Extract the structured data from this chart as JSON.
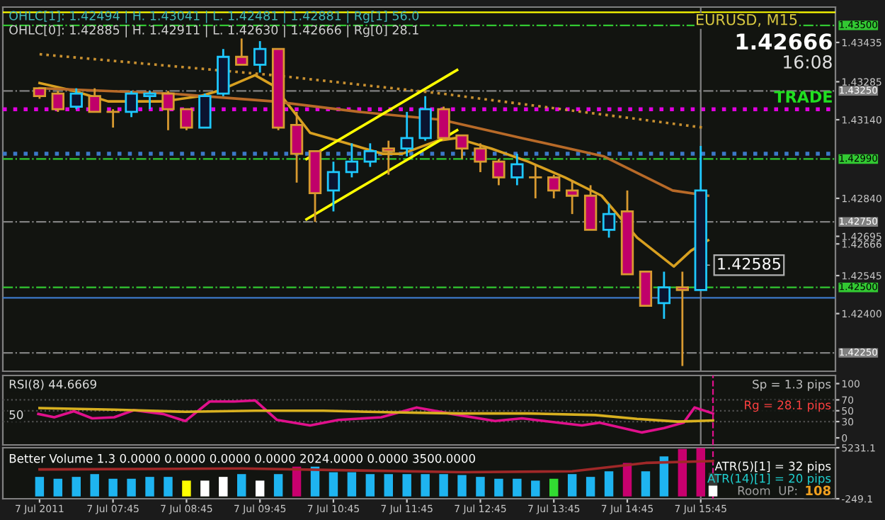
{
  "chart_data": [
    {
      "type": "candlestick",
      "title": "EURUSD, M15",
      "x": [
        "2011-07-07T06:45",
        "2011-07-07T07:00",
        "2011-07-07T07:15",
        "2011-07-07T07:30",
        "2011-07-07T07:45",
        "2011-07-07T08:00",
        "2011-07-07T08:15",
        "2011-07-07T08:30",
        "2011-07-07T08:45",
        "2011-07-07T09:00",
        "2011-07-07T09:15",
        "2011-07-07T09:30",
        "2011-07-07T09:45",
        "2011-07-07T10:00",
        "2011-07-07T10:15",
        "2011-07-07T10:30",
        "2011-07-07T10:45",
        "2011-07-07T11:00",
        "2011-07-07T11:15",
        "2011-07-07T11:30",
        "2011-07-07T11:45",
        "2011-07-07T12:00",
        "2011-07-07T12:15",
        "2011-07-07T12:30",
        "2011-07-07T12:45",
        "2011-07-07T13:00",
        "2011-07-07T13:15",
        "2011-07-07T13:30",
        "2011-07-07T13:45",
        "2011-07-07T14:00",
        "2011-07-07T14:15",
        "2011-07-07T14:30",
        "2011-07-07T14:45",
        "2011-07-07T15:00",
        "2011-07-07T15:15",
        "2011-07-07T15:30",
        "2011-07-07T15:45"
      ],
      "ohlc": [
        [
          1.4326,
          1.4326,
          1.4322,
          1.4323
        ],
        [
          1.4324,
          1.4325,
          1.4317,
          1.4318
        ],
        [
          1.4319,
          1.4326,
          1.4318,
          1.4324
        ],
        [
          1.4323,
          1.4326,
          1.4317,
          1.4317
        ],
        [
          1.4317,
          1.4318,
          1.4311,
          1.4317
        ],
        [
          1.4317,
          1.4325,
          1.4315,
          1.4324
        ],
        [
          1.4323,
          1.4325,
          1.4318,
          1.4324
        ],
        [
          1.4324,
          1.4325,
          1.431,
          1.4318
        ],
        [
          1.4318,
          1.4318,
          1.431,
          1.4311
        ],
        [
          1.4311,
          1.4324,
          1.4311,
          1.4323
        ],
        [
          1.4324,
          1.4341,
          1.4323,
          1.4338
        ],
        [
          1.4338,
          1.4345,
          1.4335,
          1.4335
        ],
        [
          1.4335,
          1.4344,
          1.4332,
          1.4341
        ],
        [
          1.4341,
          1.4341,
          1.431,
          1.4311
        ],
        [
          1.4312,
          1.4317,
          1.429,
          1.4301
        ],
        [
          1.4302,
          1.4302,
          1.4275,
          1.4286
        ],
        [
          1.4287,
          1.4298,
          1.4279,
          1.4294
        ],
        [
          1.4294,
          1.4305,
          1.4292,
          1.4298
        ],
        [
          1.4298,
          1.4305,
          1.4296,
          1.4302
        ],
        [
          1.4303,
          1.4306,
          1.4293,
          1.4302
        ],
        [
          1.4303,
          1.4317,
          1.43,
          1.4307
        ],
        [
          1.4307,
          1.4323,
          1.4306,
          1.4318
        ],
        [
          1.4318,
          1.4319,
          1.4306,
          1.4307
        ],
        [
          1.4308,
          1.4308,
          1.4299,
          1.4303
        ],
        [
          1.4303,
          1.4305,
          1.4294,
          1.4298
        ],
        [
          1.4298,
          1.4299,
          1.4289,
          1.4292
        ],
        [
          1.4292,
          1.4301,
          1.4289,
          1.4297
        ],
        [
          1.4292,
          1.4297,
          1.4284,
          1.4292
        ],
        [
          1.4292,
          1.4293,
          1.4284,
          1.4287
        ],
        [
          1.4287,
          1.4291,
          1.4278,
          1.4285
        ],
        [
          1.4285,
          1.4289,
          1.4272,
          1.4272
        ],
        [
          1.4272,
          1.4282,
          1.4269,
          1.4278
        ],
        [
          1.4279,
          1.4287,
          1.4255,
          1.4255
        ],
        [
          1.4256,
          1.4256,
          1.4243,
          1.4243
        ],
        [
          1.4244,
          1.4256,
          1.4238,
          1.425
        ],
        [
          1.425,
          1.4256,
          1.422,
          1.4249
        ],
        [
          1.4249,
          1.4304,
          1.4249,
          1.4287
        ]
      ],
      "series": [
        {
          "type": "line",
          "color": "#d8a020",
          "x": [
            "2011-07-07T06:45",
            "2011-07-07T07:13",
            "2011-07-07T07:41",
            "2011-07-07T08:26",
            "2011-07-07T08:56",
            "2011-07-07T09:11",
            "2011-07-07T09:41",
            "2011-07-07T09:56",
            "2011-07-07T10:11",
            "2011-07-07T10:26",
            "2011-07-07T10:56",
            "2011-07-07T11:25",
            "2011-07-07T11:41",
            "2011-07-07T12:10",
            "2011-07-07T12:25",
            "2011-07-07T12:54",
            "2011-07-07T13:24",
            "2011-07-07T13:54",
            "2011-07-07T14:24",
            "2011-07-07T14:53",
            "2011-07-07T15:23",
            "2011-07-07T15:37",
            "2011-07-07T15:51"
          ],
          "values": [
            1.4328,
            1.4325,
            1.4321,
            1.4321,
            1.4323,
            1.4325,
            1.4331,
            1.4327,
            1.4318,
            1.4309,
            1.4305,
            1.4301,
            1.4301,
            1.4306,
            1.4307,
            1.4303,
            1.4298,
            1.4292,
            1.4285,
            1.4269,
            1.4258,
            1.4264,
            1.4268
          ]
        },
        {
          "type": "line",
          "color": "#b86a28",
          "x": [
            "2011-07-07T06:45",
            "2011-07-07T08:31",
            "2011-07-07T09:56",
            "2011-07-07T11:06",
            "2011-07-07T12:13",
            "2011-07-07T13:19",
            "2011-07-07T14:26",
            "2011-07-07T15:22",
            "2011-07-07T15:51"
          ],
          "values": [
            1.4326,
            1.4324,
            1.4321,
            1.4317,
            1.4314,
            1.4307,
            1.43,
            1.4287,
            1.4285
          ]
        },
        {
          "type": "line",
          "color": "#c89030",
          "line_style": "dotted",
          "x": [
            "2011-07-07T06:45",
            "2011-07-07T09:56",
            "2011-07-07T12:13",
            "2011-07-07T15:47"
          ],
          "values": [
            1.4339,
            1.4331,
            1.4324,
            1.4311
          ]
        },
        {
          "type": "line",
          "color": "#ffff00",
          "x": [
            "2011-07-07T10:23",
            "2011-07-07T12:26"
          ],
          "values": [
            1.4299,
            1.4333
          ]
        },
        {
          "type": "line",
          "color": "#ffff00",
          "x": [
            "2011-07-07T10:23",
            "2011-07-07T12:26"
          ],
          "values": [
            1.4276,
            1.431
          ]
        }
      ],
      "xlim": [
        "2011-07-07T06:15",
        "2011-07-07T17:35"
      ],
      "ylim": [
        1.4218,
        1.4357
      ],
      "yticks": [
        1.43435,
        1.43285,
        {
          "value": 1.4314,
          "label": "1.43140"
        },
        {
          "value": 1.4284,
          "label": "1.42840"
        },
        1.42695,
        {
          "value": 1.42666,
          "label": "1.42666"
        },
        1.42545,
        {
          "value": 1.424,
          "label": "1.42400"
        }
      ],
      "ref_lines": [
        {
          "axis": "y",
          "value": 1.4355,
          "color": "#ffff00",
          "line_style": "solid"
        },
        {
          "axis": "y",
          "value": 1.435,
          "label": "1.43500",
          "color": "#32c832",
          "line_style": "dashdot"
        },
        {
          "axis": "y",
          "value": 1.4325,
          "label": "1.43250",
          "color": "#808080",
          "line_style": "dashdot"
        },
        {
          "axis": "y",
          "value": 1.4318,
          "color": "#e000e0",
          "line_style": "dotted"
        },
        {
          "axis": "y",
          "value": 1.4301,
          "color": "#3c78c8",
          "line_style": "dotted"
        },
        {
          "axis": "y",
          "value": 1.4299,
          "label": "1.42990",
          "color": "#32c832",
          "line_style": "dashdot"
        },
        {
          "axis": "y",
          "value": 1.4275,
          "label": "1.42750",
          "color": "#808080",
          "line_style": "dashdot"
        },
        {
          "axis": "y",
          "value": 1.425,
          "label": "1.42500",
          "color": "#32c832",
          "line_style": "dashdot"
        },
        {
          "axis": "y",
          "value": 1.4246,
          "color": "#3c78c8",
          "line_style": "solid"
        },
        {
          "axis": "y",
          "value": 1.4225,
          "label": "1.42250",
          "color": "#808080",
          "line_style": "dashdot"
        },
        {
          "axis": "x",
          "value": "2011-07-07T15:45",
          "color": "#808080",
          "line_style": "solid"
        }
      ],
      "annotations": [
        "OHLC[1]: 1.42494 | H. 1.43041 | L. 1.42481 | 1.42881 | Rg[1] 56.0",
        "OHLC[0]: 1.42885 | H. 1.42911 | L. 1.42630 | 1.42666 | Rg[0] 28.1",
        "1.42666",
        "16:08",
        "TRADE",
        {
          "text": "1.42585",
          "x": "2011-07-07T15:45",
          "y": 1.42585
        }
      ],
      "tick_labels": "y"
    },
    {
      "type": "line",
      "series": [
        {
          "type": "line",
          "color": "#e0108c",
          "x": [
            "2011-07-07T06:44",
            "2011-07-07T06:57",
            "2011-07-07T07:13",
            "2011-07-07T07:28",
            "2011-07-07T07:46",
            "2011-07-07T08:02",
            "2011-07-07T08:26",
            "2011-07-07T08:44",
            "2011-07-07T09:04",
            "2011-07-07T09:24",
            "2011-07-07T09:41",
            "2011-07-07T09:59",
            "2011-07-07T10:26",
            "2011-07-07T10:49",
            "2011-07-07T11:24",
            "2011-07-07T11:53",
            "2011-07-07T12:22",
            "2011-07-07T12:57",
            "2011-07-07T13:19",
            "2011-07-07T13:37",
            "2011-07-07T14:08",
            "2011-07-07T14:22",
            "2011-07-07T14:57",
            "2011-07-07T15:15",
            "2011-07-07T15:31",
            "2011-07-07T15:40",
            "2011-07-07T15:55"
          ],
          "values": [
            44,
            38,
            49,
            36,
            38,
            51,
            44,
            31,
            67,
            67,
            69,
            33,
            23,
            33,
            38,
            56,
            44,
            31,
            36,
            31,
            23,
            28,
            10,
            18,
            28,
            56,
            45
          ]
        },
        {
          "type": "line",
          "color": "#d8b020",
          "x": [
            "2011-07-07T06:45",
            "2011-07-07T07:46",
            "2011-07-07T08:44",
            "2011-07-07T09:41",
            "2011-07-07T10:37",
            "2011-07-07T11:33",
            "2011-07-07T12:28",
            "2011-07-07T13:24",
            "2011-07-07T14:19",
            "2011-07-07T14:53",
            "2011-07-07T15:26",
            "2011-07-07T15:55"
          ],
          "values": [
            55,
            52,
            48,
            50,
            50,
            47,
            45,
            45,
            42,
            35,
            30,
            32
          ]
        }
      ],
      "xlim": [
        "2011-07-07T06:15",
        "2011-07-07T17:35"
      ],
      "ylim": [
        -13,
        115
      ],
      "yticks": [
        0,
        30,
        50,
        70,
        100
      ],
      "ref_lines": [
        {
          "axis": "y",
          "value": 70,
          "color": "#505050",
          "line_style": "dotted"
        },
        {
          "axis": "y",
          "value": 50,
          "color": "#505050",
          "line_style": "dotted"
        },
        {
          "axis": "y",
          "value": 30,
          "color": "#505050",
          "line_style": "dotted"
        },
        {
          "axis": "x",
          "value": "2011-07-07T15:45",
          "color": "#808080",
          "line_style": "solid"
        },
        {
          "axis": "x",
          "value": "2011-07-07T15:55",
          "color": "#e0108c",
          "line_style": "dashed"
        }
      ],
      "annotations": [
        "RSI(8) 44.6669",
        "50",
        "Sp = 1.3 pips",
        "Rg = 28.1 pips"
      ],
      "tick_labels": "y"
    },
    {
      "type": "bar",
      "x": [
        "2011-07-07T06:45",
        "2011-07-07T07:00",
        "2011-07-07T07:15",
        "2011-07-07T07:30",
        "2011-07-07T07:45",
        "2011-07-07T08:00",
        "2011-07-07T08:15",
        "2011-07-07T08:30",
        "2011-07-07T08:45",
        "2011-07-07T09:00",
        "2011-07-07T09:15",
        "2011-07-07T09:30",
        "2011-07-07T09:45",
        "2011-07-07T10:00",
        "2011-07-07T10:15",
        "2011-07-07T10:30",
        "2011-07-07T10:45",
        "2011-07-07T11:00",
        "2011-07-07T11:15",
        "2011-07-07T11:30",
        "2011-07-07T11:45",
        "2011-07-07T12:00",
        "2011-07-07T12:15",
        "2011-07-07T12:30",
        "2011-07-07T12:45",
        "2011-07-07T13:00",
        "2011-07-07T13:15",
        "2011-07-07T13:30",
        "2011-07-07T13:45",
        "2011-07-07T14:00",
        "2011-07-07T14:15",
        "2011-07-07T14:30",
        "2011-07-07T14:45",
        "2011-07-07T15:00",
        "2011-07-07T15:15",
        "2011-07-07T15:30",
        "2011-07-07T15:45",
        "2011-07-07T15:55"
      ],
      "values": [
        2100,
        1900,
        2100,
        2400,
        1900,
        1900,
        2100,
        2100,
        1700,
        1700,
        2100,
        2400,
        1700,
        2400,
        3200,
        3200,
        2600,
        2600,
        2400,
        2400,
        2400,
        2400,
        2400,
        2300,
        2100,
        1900,
        1900,
        1700,
        1900,
        2400,
        2100,
        2700,
        3600,
        2700,
        4300,
        5100,
        5200,
        2500
      ],
      "colors": [
        "#1eb4f0",
        "#1eb4f0",
        "#1eb4f0",
        "#1eb4f0",
        "#1eb4f0",
        "#1eb4f0",
        "#1eb4f0",
        "#1eb4f0",
        "#ffff00",
        "#ffffff",
        "#ffffff",
        "#1eb4f0",
        "#ffffff",
        "#1eb4f0",
        "#c8006e",
        "#1eb4f0",
        "#1eb4f0",
        "#1eb4f0",
        "#1eb4f0",
        "#1eb4f0",
        "#1eb4f0",
        "#1eb4f0",
        "#1eb4f0",
        "#1eb4f0",
        "#1eb4f0",
        "#1eb4f0",
        "#1eb4f0",
        "#1eb4f0",
        "#32dc32",
        "#1eb4f0",
        "#1eb4f0",
        "#1eb4f0",
        "#c8006e",
        "#1eb4f0",
        "#1eb4f0",
        "#c8006e",
        "#c8006e",
        "#ffffff"
      ],
      "series": [
        {
          "type": "line",
          "color": "#a02828",
          "x": [
            "2011-07-07T06:45",
            "2011-07-07T09:30",
            "2011-07-07T12:30",
            "2011-07-07T14:00",
            "2011-07-07T15:00",
            "2011-07-07T15:55"
          ],
          "values": [
            2900,
            3000,
            2600,
            2700,
            3600,
            3800
          ]
        }
      ],
      "xlim": [
        "2011-07-07T06:15",
        "2011-07-07T17:35"
      ],
      "ylim": [
        -249.1,
        5231.1
      ],
      "yticks": [
        5231.1,
        -249.1
      ],
      "xticks": [
        {
          "value": "2011-07-07T06:45",
          "label": "7 Jul 2011"
        },
        {
          "value": "2011-07-07T07:45",
          "label": "7 Jul 07:45"
        },
        {
          "value": "2011-07-07T08:45",
          "label": "7 Jul 08:45"
        },
        {
          "value": "2011-07-07T09:45",
          "label": "7 Jul 09:45"
        },
        {
          "value": "2011-07-07T10:45",
          "label": "7 Jul 10:45"
        },
        {
          "value": "2011-07-07T11:45",
          "label": "7 Jul 11:45"
        },
        {
          "value": "2011-07-07T12:45",
          "label": "7 Jul 12:45"
        },
        {
          "value": "2011-07-07T13:45",
          "label": "7 Jul 13:45"
        },
        {
          "value": "2011-07-07T14:45",
          "label": "7 Jul 14:45"
        },
        {
          "value": "2011-07-07T15:45",
          "label": "7 Jul 15:45"
        }
      ],
      "ref_lines": [
        {
          "axis": "x",
          "value": "2011-07-07T15:45",
          "color": "#808080",
          "line_style": "solid"
        },
        {
          "axis": "x",
          "value": "2011-07-07T15:55",
          "color": "#e0108c",
          "line_style": "dashed"
        }
      ],
      "annotations": [
        "Better Volume 1.3 0.0000 0.0000 0.0000 0.0000 2024.0000 0.0000 3500.0000",
        "ATR(5)[1] = 32 pips",
        "ATR(14)[1] = 20 pips",
        "Room  UP:",
        "108"
      ]
    }
  ]
}
